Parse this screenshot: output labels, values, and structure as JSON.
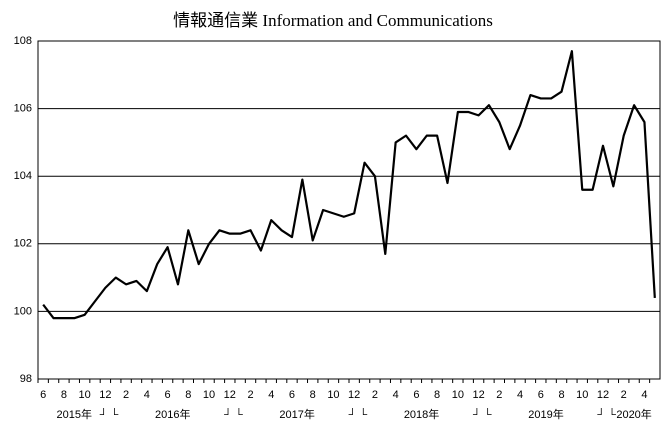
{
  "chart_data": {
    "type": "line",
    "title": "情報通信業 Information and Communications",
    "categories": [
      "6",
      null,
      "8",
      null,
      "10",
      null,
      "12",
      null,
      "2",
      null,
      "4",
      null,
      "6",
      null,
      "8",
      null,
      "10",
      null,
      "12",
      null,
      "2",
      null,
      "4",
      null,
      "6",
      null,
      "8",
      null,
      "10",
      null,
      "12",
      null,
      "2",
      null,
      "4",
      null,
      "6",
      null,
      "8",
      null,
      "10",
      null,
      "12",
      null,
      "2",
      null,
      "4",
      null,
      "6",
      null,
      "8",
      null,
      "10",
      null,
      "12",
      null,
      "2",
      null,
      "4",
      null
    ],
    "year_labels": [
      "2015年",
      "2016年",
      "2017年",
      "2018年",
      "2019年",
      "2020年"
    ],
    "year_separator": "┘└",
    "series": [
      {
        "name": "情報通信業",
        "color": "#000000",
        "values": [
          100.2,
          99.8,
          99.8,
          99.8,
          99.9,
          100.3,
          100.7,
          101.0,
          100.8,
          100.9,
          100.6,
          101.4,
          101.9,
          100.8,
          102.4,
          101.4,
          102.0,
          102.4,
          102.3,
          102.3,
          102.4,
          101.8,
          102.7,
          102.4,
          102.2,
          103.9,
          102.1,
          103.0,
          102.9,
          102.8,
          102.9,
          104.4,
          104.0,
          101.7,
          105.0,
          105.2,
          104.8,
          105.2,
          105.2,
          103.8,
          105.9,
          105.9,
          105.8,
          106.1,
          105.6,
          104.8,
          105.5,
          106.4,
          106.3,
          106.3,
          106.5,
          107.7,
          103.6,
          103.6,
          104.9,
          103.7,
          105.2,
          106.1,
          105.6,
          100.4
        ]
      }
    ],
    "ylim": [
      98,
      108
    ],
    "yticks": [
      98,
      100,
      102,
      104,
      106,
      108
    ],
    "grid": true
  }
}
